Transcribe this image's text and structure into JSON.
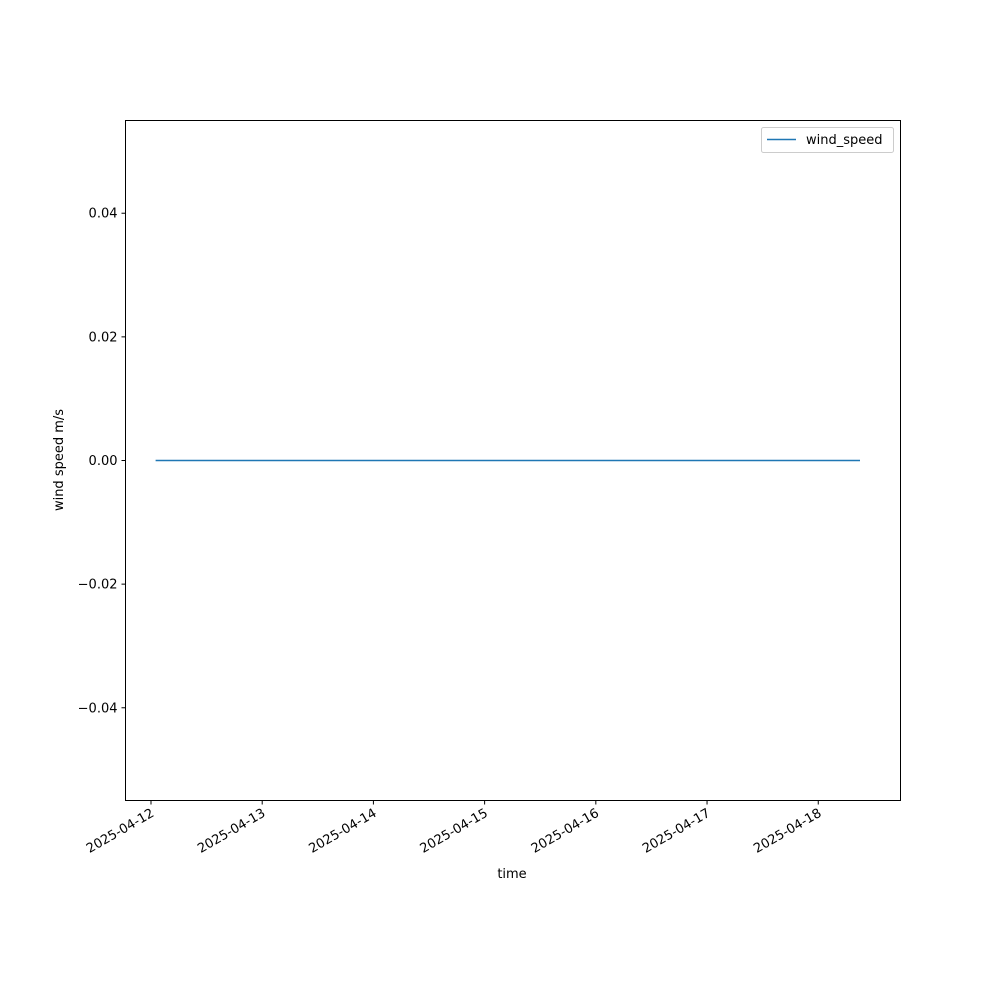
{
  "chart_data": {
    "type": "line",
    "title": "",
    "xlabel": "time",
    "ylabel": "wind speed m/s",
    "x_tick_labels": [
      "2025-04-12",
      "2025-04-13",
      "2025-04-14",
      "2025-04-15",
      "2025-04-16",
      "2025-04-17",
      "2025-04-18"
    ],
    "y_tick_labels": [
      "−0.04",
      "−0.02",
      "0.00",
      "0.02",
      "0.04"
    ],
    "y_ticks": [
      -0.04,
      -0.02,
      0,
      0.02,
      0.04
    ],
    "ylim": [
      -0.055,
      0.055
    ],
    "xlim": [
      "2025-04-11T18:30",
      "2025-04-18T17:45"
    ],
    "grid": false,
    "legend_position": "top-right",
    "series": [
      {
        "name": "wind_speed",
        "color": "#1f77b4",
        "x": [
          "2025-04-12T01:00",
          "2025-04-18T09:00"
        ],
        "y": [
          0,
          0
        ]
      }
    ]
  }
}
